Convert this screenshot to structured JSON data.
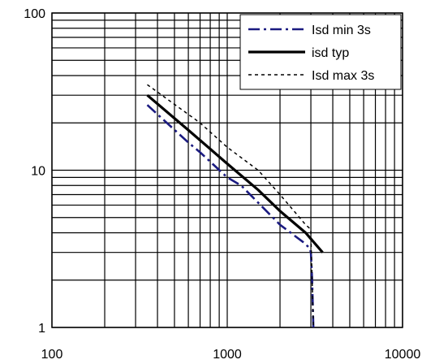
{
  "chart_data": {
    "type": "line",
    "x_scale": "log",
    "y_scale": "log",
    "xlim": [
      100,
      10000
    ],
    "ylim": [
      1,
      100
    ],
    "x_ticks": [
      "100",
      "1000",
      "10000"
    ],
    "y_ticks": [
      "1",
      "10",
      "100"
    ],
    "grid": true,
    "legend_position": "top-right",
    "series": [
      {
        "name": "Isd min 3s",
        "color": "#1a1a80",
        "style": "dash-dot",
        "points": [
          [
            350,
            26
          ],
          [
            600,
            15
          ],
          [
            700,
            13
          ],
          [
            1000,
            9
          ],
          [
            1200,
            8
          ],
          [
            2000,
            4.5
          ],
          [
            2700,
            3.5
          ],
          [
            2950,
            3.2
          ],
          [
            3000,
            3
          ],
          [
            3050,
            2
          ],
          [
            3100,
            1
          ]
        ]
      },
      {
        "name": "isd typ",
        "color": "#000000",
        "style": "solid",
        "points": [
          [
            350,
            30
          ],
          [
            600,
            18
          ],
          [
            1000,
            11
          ],
          [
            1500,
            7.5
          ],
          [
            2000,
            5.5
          ],
          [
            2800,
            4
          ],
          [
            3500,
            3
          ]
        ]
      },
      {
        "name": "Isd max 3s",
        "color": "#000000",
        "style": "dotted",
        "points": [
          [
            350,
            35
          ],
          [
            700,
            20
          ],
          [
            1000,
            14
          ],
          [
            1500,
            10
          ],
          [
            2000,
            7
          ],
          [
            2800,
            4.5
          ],
          [
            3000,
            4.2
          ],
          [
            3000,
            3.8
          ],
          [
            3050,
            2
          ],
          [
            3100,
            1
          ]
        ]
      }
    ]
  }
}
